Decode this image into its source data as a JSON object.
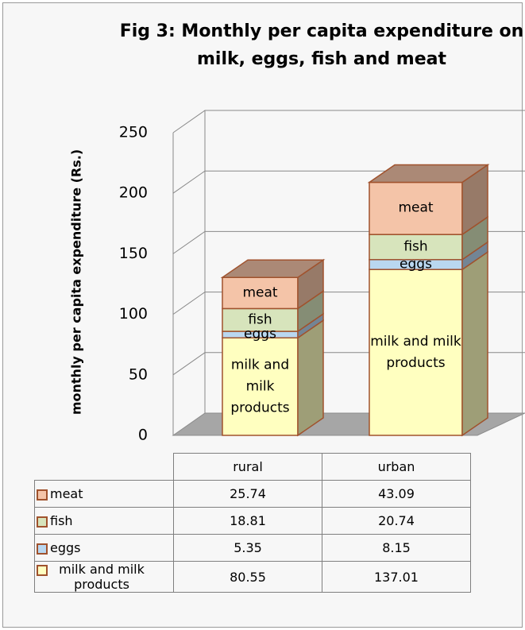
{
  "chart_data": {
    "type": "bar",
    "stacked": true,
    "title": "Fig 3: Monthly per capita expenditure on milk, eggs, fish and meat",
    "y_label": "monthly per capita expenditure (Rs.)",
    "categories": [
      "rural",
      "urban"
    ],
    "series": [
      {
        "name": "milk and milk products",
        "color": "#ffffc0",
        "values": [
          80.55,
          137.01
        ]
      },
      {
        "name": "eggs",
        "color": "#b9d7f0",
        "values": [
          5.35,
          8.15
        ]
      },
      {
        "name": "fish",
        "color": "#d7e4bc",
        "values": [
          18.81,
          20.74
        ]
      },
      {
        "name": "meat",
        "color": "#f4c4a8",
        "values": [
          25.74,
          43.09
        ]
      }
    ],
    "ylim": [
      0,
      250
    ],
    "yticks": [
      0,
      50,
      100,
      150,
      200,
      250
    ],
    "grid": true
  }
}
